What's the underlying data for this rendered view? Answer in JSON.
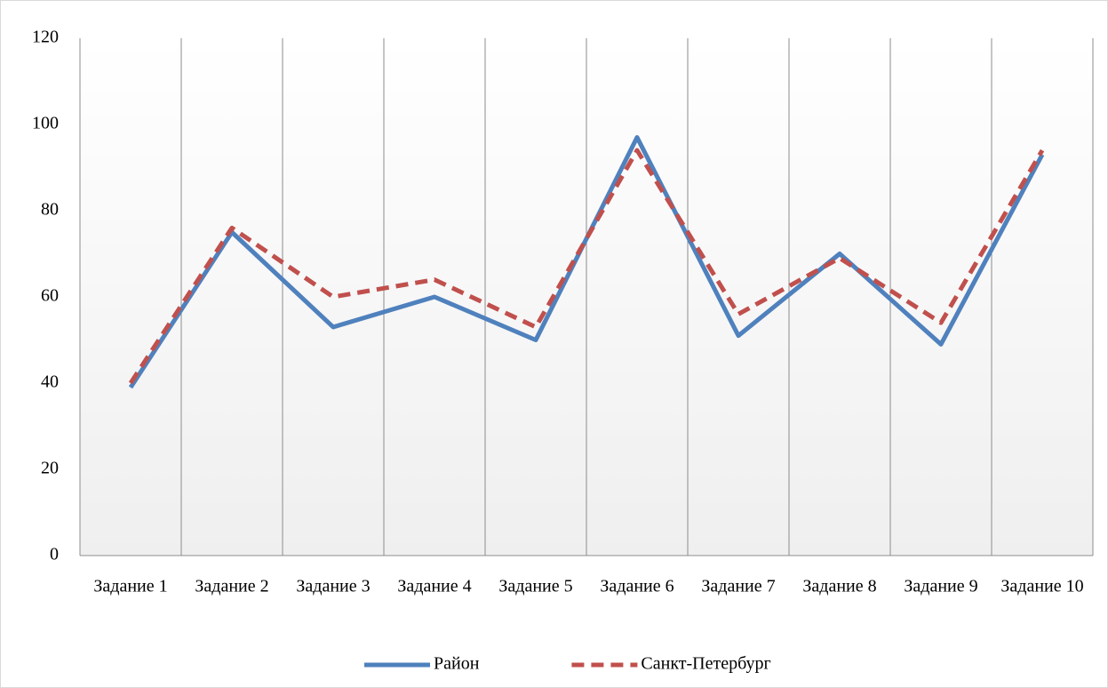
{
  "chart_data": {
    "type": "line",
    "categories": [
      "Задание 1",
      "Задание 2",
      "Задание 3",
      "Задание 4",
      "Задание 5",
      "Задание 6",
      "Задание 7",
      "Задание 8",
      "Задание 9",
      "Задание 10"
    ],
    "series": [
      {
        "name": "Район",
        "color": "#4f81bd",
        "dashed": false,
        "values": [
          39,
          75,
          53,
          60,
          50,
          97,
          51,
          70,
          49,
          93
        ]
      },
      {
        "name": "Санкт-Петербург",
        "color": "#c0504d",
        "dashed": true,
        "values": [
          40,
          76,
          60,
          64,
          53,
          94,
          56,
          69,
          54,
          94
        ]
      }
    ],
    "ylim": [
      0,
      120
    ],
    "yticks": [
      0,
      20,
      40,
      60,
      80,
      100,
      120
    ],
    "legend": "bottom"
  }
}
